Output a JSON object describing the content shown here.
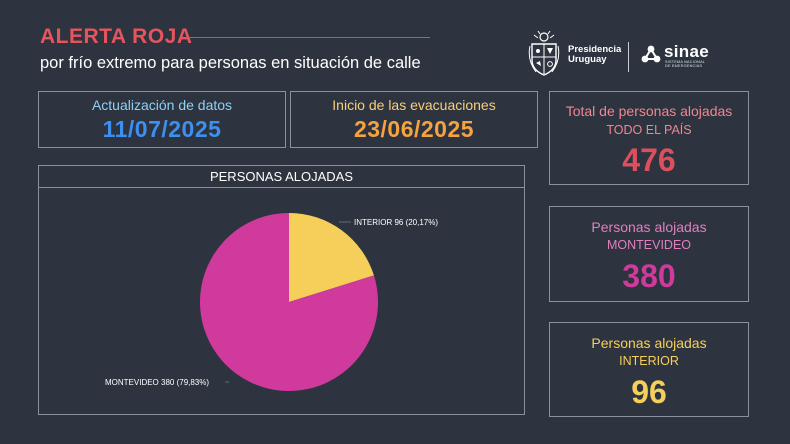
{
  "header": {
    "title": "ALERTA ROJA",
    "subtitle": "por frío extremo para personas en situación de calle"
  },
  "logos": {
    "presidencia_line1": "Presidencia",
    "presidencia_line2": "Uruguay",
    "sinae": "sinae",
    "sinae_sub_line1": "SISTEMA NACIONAL",
    "sinae_sub_line2": "DE EMERGENCIAS"
  },
  "dates": {
    "update_label": "Actualización de datos",
    "update_value": "11/07/2025",
    "evac_label": "Inicio de las evacuaciones",
    "evac_value": "23/06/2025"
  },
  "kpis": {
    "total": {
      "label": "Total de personas alojadas",
      "sub": "TODO EL PAÍS",
      "value": "476"
    },
    "montevideo": {
      "label": "Personas alojadas",
      "sub": "MONTEVIDEO",
      "value": "380"
    },
    "interior": {
      "label": "Personas alojadas",
      "sub": "INTERIOR",
      "value": "96"
    }
  },
  "colors": {
    "alert_red": "#e8545e",
    "update_blue": "#3d8ff0",
    "evac_orange": "#f4a340",
    "total_red": "#dd4f5c",
    "montevideo_magenta": "#cf3a9c",
    "interior_yellow": "#f6cf5a",
    "background": "#2d343f"
  },
  "chart_data": {
    "type": "pie",
    "title": "PERSONAS ALOJADAS",
    "slices": [
      {
        "name": "INTERIOR",
        "value": 96,
        "percent": "20,17%",
        "color": "#f6cf5a",
        "label": "INTERIOR 96 (20,17%)"
      },
      {
        "name": "MONTEVIDEO",
        "value": 380,
        "percent": "79,83%",
        "color": "#cf3a9c",
        "label": "MONTEVIDEO 380 (79,83%)"
      }
    ]
  }
}
